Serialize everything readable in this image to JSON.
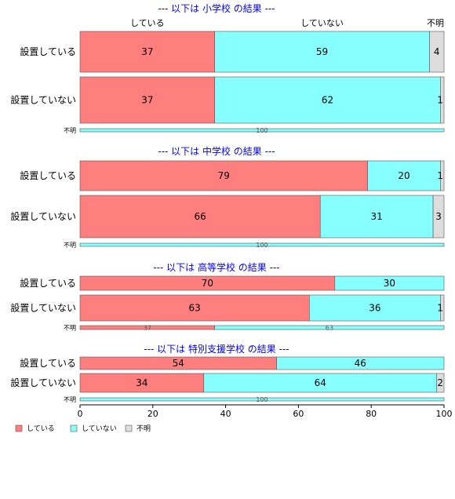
{
  "chart_data": {
    "type": "bar",
    "orientation": "horizontal",
    "stacked": true,
    "xlim": [
      0,
      100
    ],
    "x_ticks": [
      "0",
      "20",
      "40",
      "60",
      "80",
      "100"
    ],
    "colors": {
      "している": "#FF7F7F",
      "していない": "#88FFFF",
      "不明": "#DDDDDD"
    },
    "legend": {
      "position": "bottom-left",
      "items": [
        {
          "label": "している",
          "color": "#FF7F7F"
        },
        {
          "label": "していない",
          "color": "#88FFFF"
        },
        {
          "label": "不明",
          "color": "#DDDDDD"
        }
      ]
    },
    "panels": [
      {
        "title": "--- 以下は 小学校 の結果 ---",
        "header_labels": [
          "している",
          "していない",
          "不明"
        ],
        "categories": [
          "設置している",
          "設置していない",
          "不明"
        ],
        "series": [
          {
            "name": "している",
            "values": [
              37,
              37,
              0
            ]
          },
          {
            "name": "していない",
            "values": [
              59,
              62,
              100
            ]
          },
          {
            "name": "不明",
            "values": [
              4,
              1,
              0
            ]
          }
        ]
      },
      {
        "title": "--- 以下は 中学校 の結果 ---",
        "categories": [
          "設置している",
          "設置していない",
          "不明"
        ],
        "series": [
          {
            "name": "している",
            "values": [
              79,
              66,
              0
            ]
          },
          {
            "name": "していない",
            "values": [
              20,
              31,
              100
            ]
          },
          {
            "name": "不明",
            "values": [
              1,
              3,
              0
            ]
          }
        ]
      },
      {
        "title": "--- 以下は 高等学校 の結果 ---",
        "categories": [
          "設置している",
          "設置していない",
          "不明"
        ],
        "series": [
          {
            "name": "している",
            "values": [
              70,
              63,
              37
            ]
          },
          {
            "name": "していない",
            "values": [
              30,
              36,
              63
            ]
          },
          {
            "name": "不明",
            "values": [
              0,
              1,
              0
            ]
          }
        ]
      },
      {
        "title": "--- 以下は 特別支援学校 の結果 ---",
        "categories": [
          "設置している",
          "設置していない",
          "不明"
        ],
        "series": [
          {
            "name": "している",
            "values": [
              54,
              34,
              0
            ]
          },
          {
            "name": "していない",
            "values": [
              46,
              64,
              100
            ]
          },
          {
            "name": "不明",
            "values": [
              0,
              2,
              0
            ]
          }
        ]
      }
    ]
  }
}
